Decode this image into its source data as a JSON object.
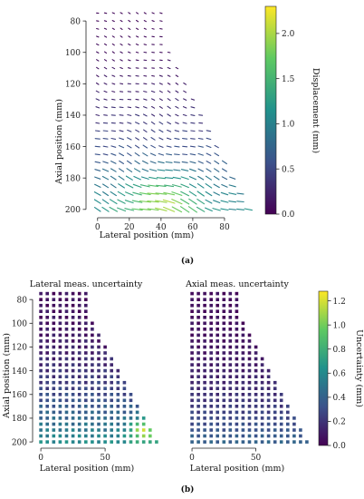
{
  "chart_data": [
    {
      "type": "quiver",
      "panel": "(a)",
      "xlabel": "Lateral position (mm)",
      "ylabel": "Axial position (mm)",
      "xlim": [
        -5,
        100
      ],
      "ylim": [
        203,
        73
      ],
      "xticks": [
        0,
        20,
        40,
        60,
        80
      ],
      "yticks": [
        80,
        100,
        120,
        140,
        160,
        180,
        200
      ],
      "colorbar": {
        "label": "Displacement (mm)",
        "range": [
          0.0,
          2.3
        ],
        "ticks": [
          0.0,
          0.5,
          1.0,
          1.5,
          2.0
        ],
        "tick_labels": [
          "0.0",
          "0.5",
          "1.0",
          "1.5",
          "2.0"
        ],
        "colormap": [
          "#440154",
          "#3b528b",
          "#21918c",
          "#5ec962",
          "#fde725"
        ]
      },
      "grid_spacing_mm": 5,
      "first_row_y": 75,
      "last_row_y": 200,
      "region": "triangular: rows at 75–85 mm span 0–40 mm laterally; right edge widens linearly to about 95 mm at 200 mm depth",
      "notes": "Vectors point mostly diagonally down-right; magnitudes grow with depth, largest (about 2.0 mm) near x≈40 mm, y≈195 mm."
    },
    {
      "type": "heatmap",
      "panel": "(b)",
      "title": "Lateral meas. uncertainty",
      "xlabel": "Lateral position (mm)",
      "ylabel": "Axial position (mm)",
      "xlim": [
        -5,
        95
      ],
      "ylim": [
        203,
        73
      ],
      "xticks": [
        0,
        50
      ],
      "yticks": [
        80,
        100,
        120,
        140,
        160,
        180,
        200
      ],
      "marker": "square",
      "notes": "Low uncertainty (about 0.05–0.2) in the upper region, increasing to about 0.5–1.2 in the bottom rows; highest near x≈80, y≈190."
    },
    {
      "type": "heatmap",
      "panel": "(b)",
      "title": "Axial meas. uncertainty",
      "xlabel": "Lateral position (mm)",
      "xlim": [
        -5,
        95
      ],
      "ylim": [
        203,
        73
      ],
      "xticks": [
        0,
        50
      ],
      "marker": "square",
      "notes": "Mostly low uncertainty (about 0.05–0.3), modestly higher (about 0.3–0.6) in the lower rows.",
      "colorbar": {
        "label": "Uncertainty (mm)",
        "range": [
          0.0,
          1.28
        ],
        "ticks": [
          0.0,
          0.2,
          0.4,
          0.6,
          0.8,
          1.0,
          1.2
        ],
        "tick_labels": [
          "0.0",
          "0.2",
          "0.4",
          "0.6",
          "0.8",
          "1.0",
          "1.2"
        ],
        "colormap": [
          "#440154",
          "#3b528b",
          "#21918c",
          "#5ec962",
          "#fde725"
        ]
      }
    }
  ],
  "captions": {
    "a": "(a)",
    "b": "(b)"
  }
}
